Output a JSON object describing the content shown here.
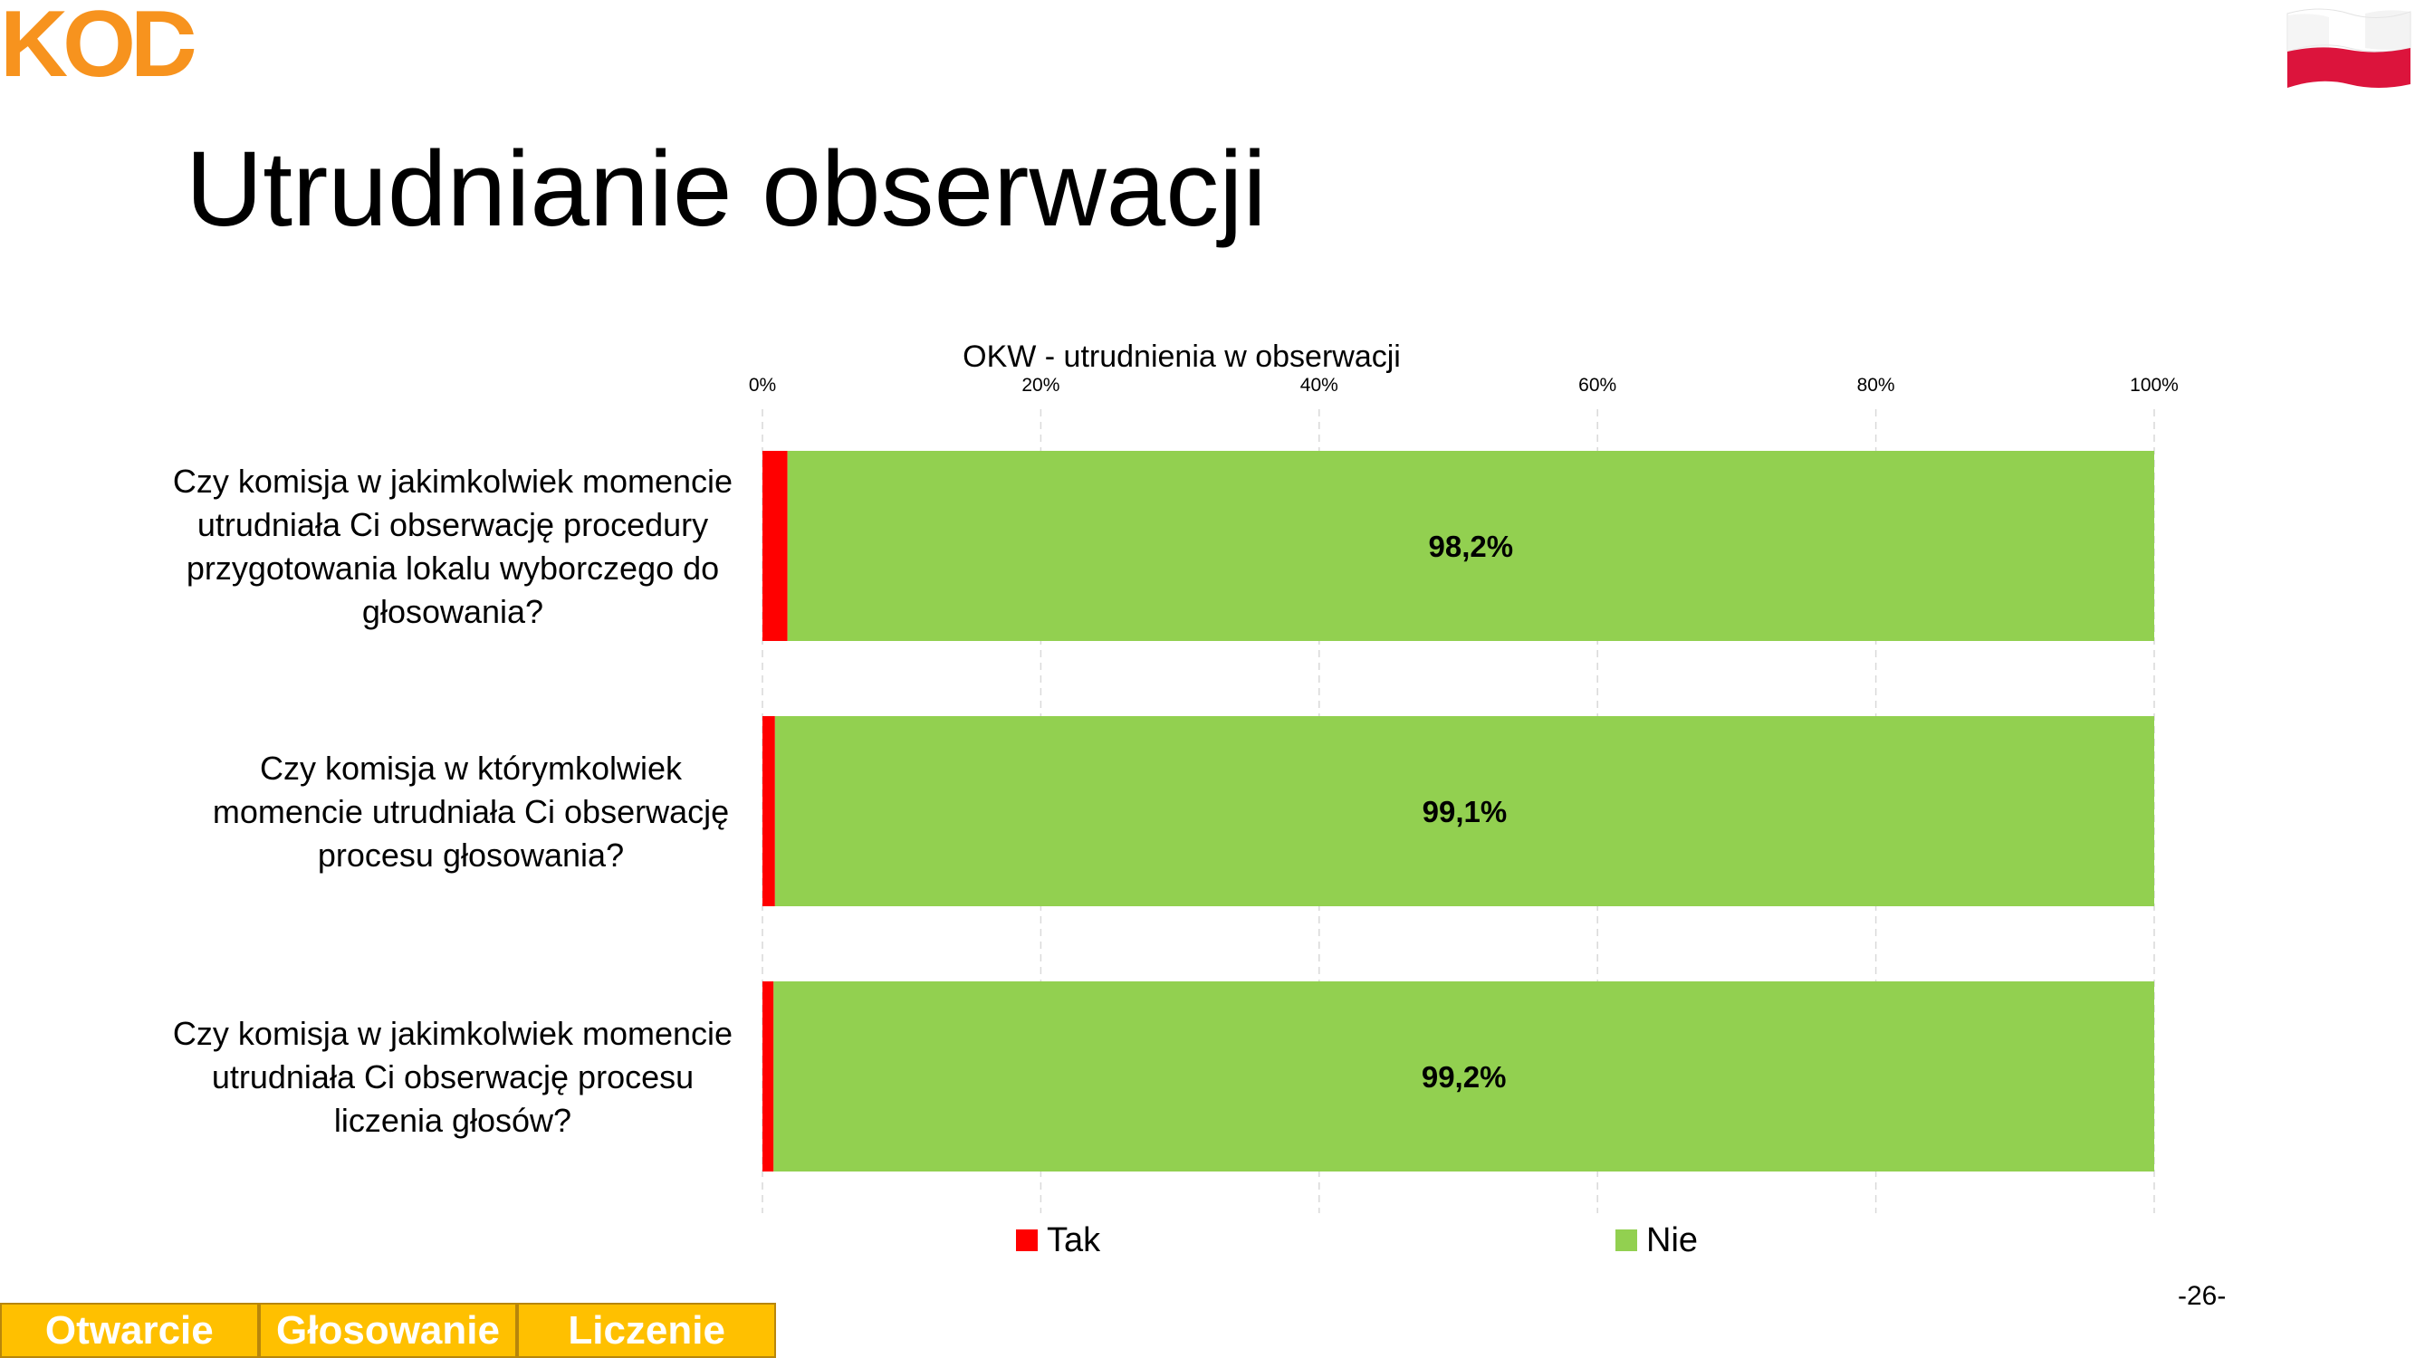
{
  "logo": {
    "text": "KOD",
    "color": "#F7931E"
  },
  "flag": {
    "top_color": "#FFFFFF",
    "bottom_color": "#DC143C"
  },
  "page": {
    "title": "Utrudnianie obserwacji",
    "slide_number": "-26-"
  },
  "nav": {
    "tabs": [
      "Otwarcie",
      "Głosowanie",
      "Liczenie"
    ],
    "color": "#FFC000"
  },
  "chart_data": {
    "type": "bar",
    "orientation": "horizontal",
    "stacked": "percent",
    "title": "OKW - utrudnienia w obserwacji",
    "categories": [
      "Czy komisja w jakimkolwiek momencie utrudniała Ci obserwację procedury przygotowania lokalu wyborczego do głosowania?",
      "Czy komisja w którymkolwiek momencie utrudniała Ci obserwację procesu głosowania?",
      "Czy komisja w jakimkolwiek momencie utrudniała Ci obserwację procesu liczenia głosów?"
    ],
    "series": [
      {
        "name": "Tak",
        "color": "#FF0000",
        "values": [
          1.8,
          0.9,
          0.8
        ]
      },
      {
        "name": "Nie",
        "color": "#92D050",
        "values": [
          98.2,
          99.1,
          99.2
        ],
        "labels": [
          "98,2%",
          "99,1%",
          "99,2%"
        ]
      }
    ],
    "xlim": [
      0,
      100
    ],
    "xticks": [
      "0%",
      "20%",
      "40%",
      "60%",
      "80%",
      "100%"
    ],
    "grid": true,
    "legend": "bottom"
  }
}
